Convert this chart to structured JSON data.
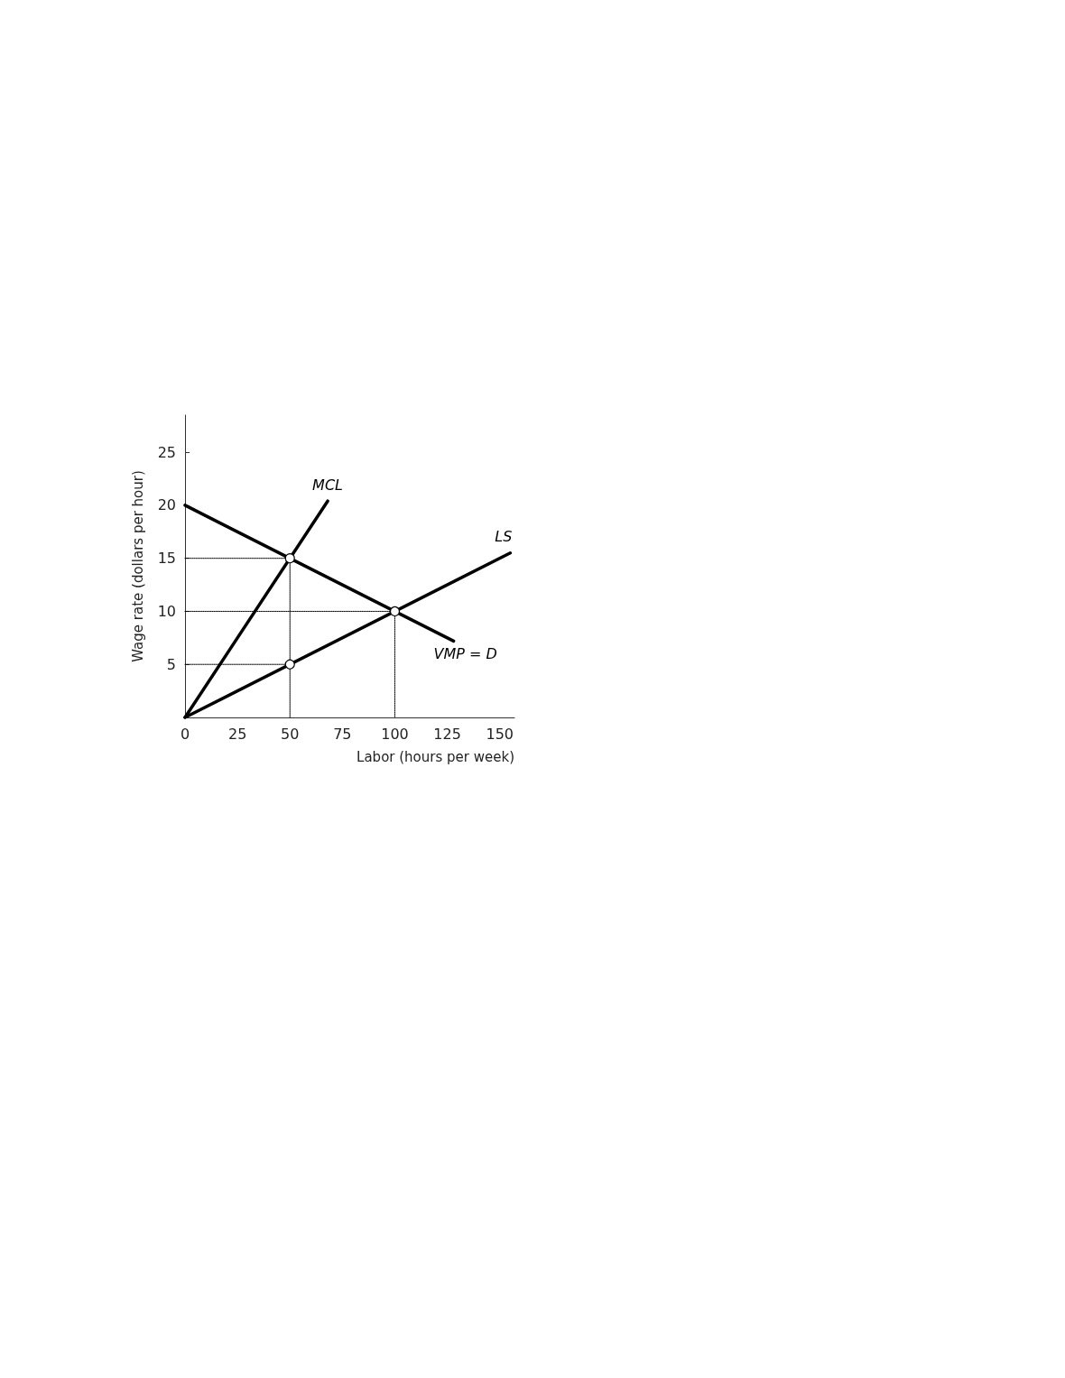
{
  "chart_data": {
    "type": "line",
    "xlabel": "Labor (hours per week)",
    "ylabel": "Wage rate (dollars per hour)",
    "xlim": [
      0,
      157
    ],
    "xticks": [
      0,
      25,
      50,
      75,
      100,
      125,
      150
    ],
    "ylim": [
      0,
      28.5
    ],
    "yticks": [
      5,
      10,
      15,
      20,
      25
    ],
    "grid": false,
    "legend": false,
    "series": [
      {
        "name": "MCL",
        "color": "#000000",
        "x": [
          0,
          68
        ],
        "values": [
          0,
          20.4
        ]
      },
      {
        "name": "LS",
        "color": "#000000",
        "x": [
          0,
          155
        ],
        "values": [
          0,
          15.5
        ]
      },
      {
        "name": "VMP = D",
        "color": "#000000",
        "x": [
          0,
          128
        ],
        "values": [
          20,
          7.2
        ]
      },
      {
        "type": "scatter",
        "marker": "circle",
        "color": "#000000",
        "x": [
          50,
          50,
          100
        ],
        "values": [
          15,
          5,
          10
        ]
      },
      {
        "color": "#000000",
        "line_style": "dotted",
        "x": [
          0,
          50,
          50
        ],
        "values": [
          15,
          15,
          0
        ]
      },
      {
        "color": "#000000",
        "line_style": "dotted",
        "x": [
          0,
          100,
          100
        ],
        "values": [
          10,
          10,
          0
        ]
      },
      {
        "color": "#000000",
        "line_style": "dotted",
        "x": [
          0,
          50
        ],
        "values": [
          5,
          5
        ]
      }
    ]
  }
}
